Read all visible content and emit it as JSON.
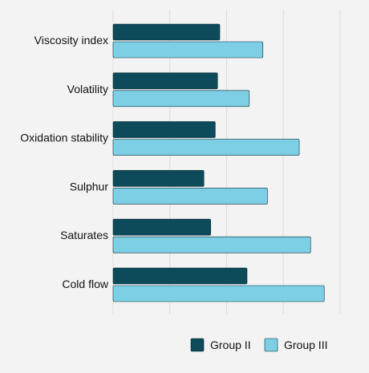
{
  "chart_data": {
    "type": "bar",
    "orientation": "horizontal",
    "title": "",
    "xlabel": "",
    "ylabel": "",
    "categories": [
      "Viscosity index",
      "Volatility",
      "Oxidation stability",
      "Sulphur",
      "Saturates",
      "Cold flow"
    ],
    "series": [
      {
        "name": "Group II",
        "color": "#0d4a5a",
        "values": [
          47,
          46,
          45,
          40,
          43,
          59
        ]
      },
      {
        "name": "Group III",
        "color": "#7dcfe6",
        "values": [
          66,
          60,
          82,
          68,
          87,
          93
        ]
      }
    ],
    "xlim": [
      0,
      100
    ],
    "grid": "vertical",
    "legend_position": "bottom-right"
  }
}
